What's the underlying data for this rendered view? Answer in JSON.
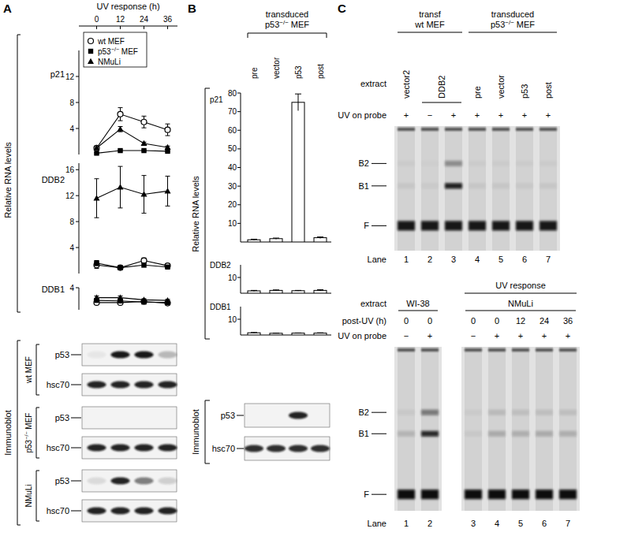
{
  "panels": [
    "A",
    "B",
    "C"
  ],
  "chart_data": [
    {
      "type": "line",
      "title": "p21",
      "xlabel": "UV response (h)",
      "ylabel": "Relative RNA levels",
      "x": [
        0,
        12,
        24,
        36
      ],
      "xlim": [
        -9,
        41
      ],
      "xticks": [
        0,
        12,
        24,
        36
      ],
      "ylim": [
        0,
        16
      ],
      "yticks": [
        4,
        8,
        12
      ],
      "legend": "top-left",
      "series": [
        {
          "name": "wt MEF",
          "color": "#000000",
          "marker": "open-circle",
          "values": [
            1.0,
            6.2,
            5.0,
            3.8
          ],
          "errors": [
            0.3,
            1.0,
            0.9,
            0.9
          ]
        },
        {
          "name": "p53−/− MEF",
          "color": "#000000",
          "marker": "square",
          "values": [
            0.2,
            0.6,
            0.6,
            0.5
          ],
          "errors": [
            0.1,
            0.1,
            0.1,
            0.1
          ]
        },
        {
          "name": "NMuLi",
          "color": "#000000",
          "marker": "triangle",
          "values": [
            1.0,
            3.9,
            1.7,
            1.1
          ],
          "errors": [
            0.2,
            0.4,
            0.2,
            0.2
          ]
        }
      ]
    },
    {
      "type": "line",
      "title": "DDB2",
      "x": [
        0,
        12,
        24,
        36
      ],
      "xlim": [
        -9,
        41
      ],
      "ylim": [
        0,
        17
      ],
      "yticks": [
        4,
        8,
        12,
        16
      ],
      "series": [
        {
          "color": "#000000",
          "marker": "open-circle",
          "values": [
            1.3,
            0.9,
            2.0,
            1.2
          ],
          "errors": [
            0.5,
            0.2,
            0.4,
            0.3
          ]
        },
        {
          "color": "#000000",
          "marker": "square",
          "values": [
            1.6,
            0.9,
            1.3,
            1.0
          ],
          "errors": [
            0.4,
            0.2,
            0.3,
            0.2
          ]
        },
        {
          "color": "#000000",
          "marker": "triangle",
          "values": [
            11.6,
            13.3,
            12.2,
            12.7
          ],
          "errors": [
            3.0,
            3.2,
            2.9,
            2.3
          ]
        }
      ]
    },
    {
      "type": "line",
      "title": "DDB1",
      "x": [
        0,
        12,
        24,
        36
      ],
      "xlim": [
        -9,
        41
      ],
      "ylim": [
        0,
        4
      ],
      "yticks": [
        4
      ],
      "series": [
        {
          "color": "#000000",
          "marker": "open-circle",
          "values": [
            1.3,
            1.3,
            1.5,
            1.2
          ],
          "errors": [
            0.3,
            0.2,
            0.2,
            0.2
          ]
        },
        {
          "color": "#000000",
          "marker": "square",
          "values": [
            1.7,
            1.6,
            1.4,
            1.3
          ],
          "errors": [
            0.2,
            0.2,
            0.2,
            0.2
          ]
        },
        {
          "color": "#000000",
          "marker": "triangle",
          "values": [
            2.2,
            2.2,
            1.8,
            1.7
          ],
          "errors": [
            0.3,
            0.3,
            0.2,
            0.2
          ]
        }
      ]
    },
    {
      "type": "bar",
      "title": "p21",
      "ylabel": "Relative RNA levels",
      "header": [
        "transduced",
        "p53−/− MEF"
      ],
      "categories": [
        "pre",
        "vector",
        "p53",
        "post"
      ],
      "values": [
        1.2,
        1.8,
        75,
        2.3
      ],
      "errors": [
        0.3,
        0.3,
        4.5,
        0.4
      ],
      "color": "#ffffff",
      "ylim": [
        0,
        80
      ],
      "yticks": [
        10,
        20,
        30,
        40,
        50,
        60,
        70,
        80
      ]
    },
    {
      "type": "bar",
      "title": "DDB2",
      "values": [
        1.5,
        1.8,
        1.6,
        1.8
      ],
      "errors": [
        0.3,
        0.3,
        0.2,
        0.4
      ],
      "color": "#ffffff",
      "ylim": [
        0,
        18
      ],
      "yticks": [
        10
      ]
    },
    {
      "type": "bar",
      "title": "DDB1",
      "values": [
        1.4,
        1.1,
        1.2,
        1.2
      ],
      "errors": [
        0.2,
        0.1,
        0.1,
        0.2
      ],
      "color": "#ffffff",
      "ylim": [
        0,
        18
      ],
      "yticks": [
        10
      ]
    }
  ],
  "immunoblots": [
    {
      "title": "Immunoblot",
      "groups": [
        {
          "label": "wt MEF",
          "rows": [
            {
              "label": "p53",
              "bands": [
                0.05,
                0.95,
                0.95,
                0.25
              ]
            },
            {
              "label": "hsc70",
              "bands": [
                0.9,
                0.9,
                0.9,
                0.9
              ]
            }
          ]
        },
        {
          "label": "p53−/− MEF",
          "rows": [
            {
              "label": "p53",
              "bands": [
                0,
                0,
                0,
                0
              ]
            },
            {
              "label": "hsc70",
              "bands": [
                0.9,
                0.9,
                0.9,
                0.9
              ]
            }
          ]
        },
        {
          "label": "NMuLi",
          "rows": [
            {
              "label": "p53",
              "bands": [
                0.1,
                0.9,
                0.5,
                0.15
              ]
            },
            {
              "label": "hsc70",
              "bands": [
                0.9,
                0.9,
                0.9,
                0.9
              ]
            }
          ]
        }
      ]
    },
    {
      "title": "Immunoblot",
      "groups": [
        {
          "rows": [
            {
              "label": "p53",
              "bands": [
                0,
                0,
                0.9,
                0
              ]
            },
            {
              "label": "hsc70",
              "bands": [
                0.85,
                0.85,
                0.85,
                0.85
              ]
            }
          ]
        }
      ]
    }
  ],
  "gels": [
    {
      "headers": [
        {
          "lines": [
            "transf",
            "wt MEF"
          ],
          "lanes": [
            1,
            3
          ]
        },
        {
          "lines": [
            "transduced",
            "p53−/− MEF"
          ],
          "lanes": [
            4,
            7
          ]
        }
      ],
      "rows": [
        {
          "label": "extract",
          "cells": [
            {
              "text": "vector2",
              "lanes": [
                1,
                1
              ]
            },
            {
              "text": "DDB2",
              "lanes": [
                2,
                3
              ]
            },
            {
              "text": "pre",
              "lanes": [
                4,
                4
              ]
            },
            {
              "text": "vector",
              "lanes": [
                5,
                5
              ]
            },
            {
              "text": "p53",
              "lanes": [
                6,
                6
              ]
            },
            {
              "text": "post",
              "lanes": [
                7,
                7
              ]
            }
          ]
        },
        {
          "label": "UV on probe",
          "cells": [
            "+",
            "−",
            "+",
            "+",
            "+",
            "+",
            "+"
          ]
        }
      ],
      "lane_label": "Lane",
      "lanes": [
        1,
        2,
        3,
        4,
        5,
        6,
        7
      ],
      "markers": [
        "B2",
        "B1",
        "F"
      ],
      "bands": [
        [
          0.03,
          0.02,
          0.35,
          0.03,
          0.03,
          0.03,
          0.03
        ],
        [
          0.06,
          0.04,
          0.9,
          0.06,
          0.06,
          0.05,
          0.06
        ],
        [
          0.95,
          0.95,
          0.95,
          0.95,
          0.95,
          0.95,
          0.95
        ]
      ]
    },
    {
      "headers": [
        {
          "lines": [
            "UV response"
          ],
          "lanes": [
            3,
            7
          ]
        }
      ],
      "rows": [
        {
          "label": "extract",
          "cells": [
            {
              "text": "WI-38",
              "lanes": [
                1,
                2
              ]
            },
            {
              "text": "NMuLi",
              "lanes": [
                3,
                7
              ]
            }
          ]
        },
        {
          "label": "post-UV (h)",
          "cells": [
            0,
            0,
            0,
            0,
            12,
            24,
            36
          ]
        },
        {
          "label": "UV on probe",
          "cells": [
            "−",
            "+",
            "−",
            "+",
            "+",
            "+",
            "+"
          ]
        }
      ],
      "lane_label": "Lane",
      "lanes": [
        1,
        2,
        3,
        4,
        5,
        6,
        7
      ],
      "markers": [
        "B2",
        "B1",
        "F"
      ],
      "bands": [
        [
          0.05,
          0.45,
          0.04,
          0.12,
          0.1,
          0.1,
          0.1
        ],
        [
          0.15,
          0.85,
          0.05,
          0.2,
          0.18,
          0.2,
          0.18
        ],
        [
          1,
          1,
          1,
          1,
          1,
          1,
          1
        ]
      ]
    }
  ]
}
